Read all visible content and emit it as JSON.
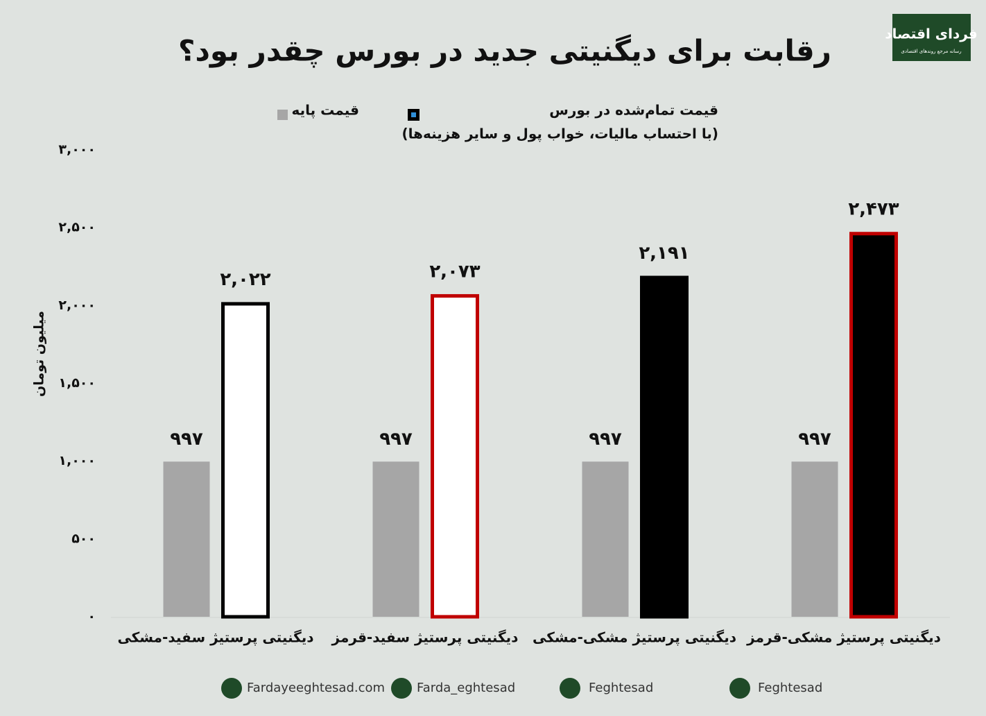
{
  "chart_data": {
    "type": "bar",
    "title": "رقابت برای دیگنیتی جدید در بورس چقدر بود؟",
    "y_label": "میلیون تومان",
    "categories": [
      "دیگنیتی پرستیژ سفید-مشکی",
      "دیگنیتی پرستیژ سفید-قرمز",
      "دیگنیتی پرستیژ مشکی-مشکی",
      "دیگنیتی پرستیژ مشکی-قرمز"
    ],
    "series": [
      {
        "name": "قیمت پایه",
        "color": "#a6a6a6",
        "values": [
          997,
          997,
          997,
          997
        ],
        "value_labels": [
          "۹۹۷",
          "۹۹۷",
          "۹۹۷",
          "۹۹۷"
        ]
      },
      {
        "name": "قیمت تمام‌شده در بورس",
        "legend_note": "(با احتساب مالیات، خواب پول و سایر هزینه‌ها)",
        "color": "#000000",
        "legend_inner_color": "#2f8fd8",
        "fills": [
          "#ffffff",
          "#ffffff",
          "#000000",
          "#000000"
        ],
        "strokes": [
          "#000000",
          "#c00000",
          "#000000",
          "#c00000"
        ],
        "values": [
          2022,
          2073,
          2191,
          2473
        ],
        "value_labels": [
          "۲,۰۲۲",
          "۲,۰۷۳",
          "۲,۱۹۱",
          "۲,۴۷۳"
        ]
      }
    ],
    "ylim": [
      0,
      3000
    ],
    "yticks": [
      {
        "value": 0,
        "label": "۰"
      },
      {
        "value": 500,
        "label": "۵۰۰"
      },
      {
        "value": 1000,
        "label": "۱,۰۰۰"
      },
      {
        "value": 1500,
        "label": "۱,۵۰۰"
      },
      {
        "value": 2000,
        "label": "۲,۰۰۰"
      },
      {
        "value": 2500,
        "label": "۲,۵۰۰"
      },
      {
        "value": 3000,
        "label": "۳,۰۰۰"
      }
    ],
    "grid": false
  },
  "logo": {
    "name": "فردای اقتصاد",
    "tagline": "رسانه مرجع روندهای اقتصادی"
  },
  "footer": [
    "Fardayeeghtesad.com",
    "Farda_eghtesad",
    "Feghtesad",
    "Feghtesad"
  ]
}
